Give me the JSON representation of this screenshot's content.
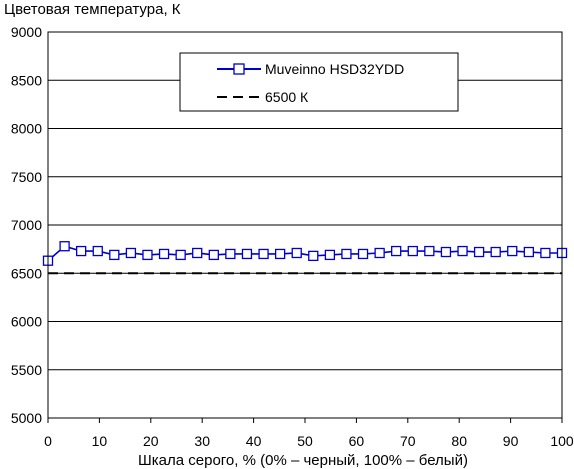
{
  "chart_data": {
    "type": "line",
    "title": "",
    "ylabel": "Цветовая температура, К",
    "xlabel": "Шкала серого, % (0% – черный, 100% – белый)",
    "xlim": [
      0,
      100
    ],
    "ylim": [
      5000,
      9000
    ],
    "x_ticks": [
      0,
      10,
      20,
      30,
      40,
      50,
      60,
      70,
      80,
      90,
      100
    ],
    "y_ticks": [
      5000,
      5500,
      6000,
      6500,
      7000,
      7500,
      8000,
      8500,
      9000
    ],
    "grid": "horizontal",
    "legend_position": "top-center",
    "series": [
      {
        "name": "Muveinno HSD32YDD",
        "color": "#0000cc",
        "marker": "square",
        "x": [
          0,
          3.23,
          6.45,
          9.68,
          12.9,
          16.13,
          19.35,
          22.58,
          25.81,
          29.03,
          32.26,
          35.48,
          38.71,
          41.94,
          45.16,
          48.39,
          51.61,
          54.84,
          58.06,
          61.29,
          64.52,
          67.74,
          70.97,
          74.19,
          77.42,
          80.65,
          83.87,
          87.1,
          90.32,
          93.55,
          96.77,
          100
        ],
        "y": [
          6630,
          6780,
          6730,
          6730,
          6690,
          6710,
          6690,
          6700,
          6690,
          6710,
          6690,
          6700,
          6700,
          6700,
          6700,
          6710,
          6680,
          6690,
          6700,
          6700,
          6710,
          6730,
          6730,
          6730,
          6720,
          6730,
          6720,
          6720,
          6730,
          6720,
          6710,
          6710
        ]
      },
      {
        "name": "6500 К",
        "color": "#000000",
        "style": "dashed",
        "x": [
          0,
          100
        ],
        "y": [
          6500,
          6500
        ]
      }
    ]
  }
}
